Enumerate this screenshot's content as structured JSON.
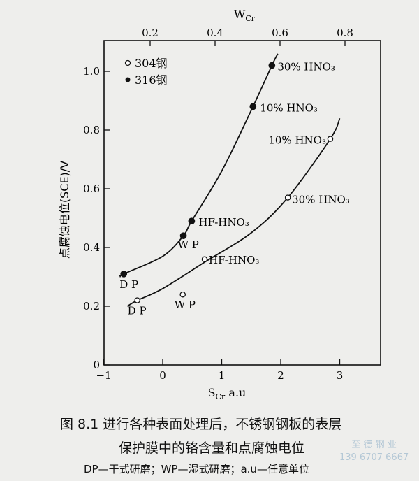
{
  "chart_data": {
    "type": "scatter",
    "xlabel": "S",
    "xlabel_sub": "Cr",
    "xlabel_unit": " a.u",
    "x2label": "W",
    "x2label_sub": "Cr",
    "ylabel": "点腐蚀电位(SCE)/V",
    "xlim": [
      -1,
      3.5
    ],
    "ylim": [
      0,
      1.1
    ],
    "xticks": [
      -1,
      0,
      1,
      2,
      3
    ],
    "yticks": [
      0,
      0.2,
      0.4,
      0.6,
      0.8,
      1.0
    ],
    "ytick_labels": [
      "0",
      "0.2",
      "0.4",
      "0.6",
      "0.8",
      "1.0"
    ],
    "x2ticks": [
      0.2,
      0.4,
      0.6,
      0.8
    ],
    "x2tick_labels": [
      "0.2",
      "0.4",
      "0.6",
      "0.8"
    ],
    "grid": false,
    "legend_placement": "top-left",
    "series": [
      {
        "name": "304钢",
        "marker": "open-circle",
        "points": [
          {
            "x": -0.43,
            "y": 0.22,
            "label": "D P"
          },
          {
            "x": 0.34,
            "y": 0.24,
            "label": "W P"
          },
          {
            "x": 0.71,
            "y": 0.36,
            "label": "HF-HNO₃"
          },
          {
            "x": 2.12,
            "y": 0.57,
            "label": "30% HNO₃"
          },
          {
            "x": 2.84,
            "y": 0.77,
            "label": "10% HNO₃"
          }
        ],
        "curve": [
          [
            -0.6,
            0.2
          ],
          [
            -0.43,
            0.22
          ],
          [
            0.0,
            0.26
          ],
          [
            0.71,
            0.35
          ],
          [
            1.5,
            0.45
          ],
          [
            2.12,
            0.57
          ],
          [
            2.84,
            0.77
          ],
          [
            3.0,
            0.84
          ]
        ]
      },
      {
        "name": "316钢",
        "marker": "filled-circle",
        "points": [
          {
            "x": -0.66,
            "y": 0.31,
            "label": "D P"
          },
          {
            "x": 0.35,
            "y": 0.44,
            "label": "W P"
          },
          {
            "x": 0.49,
            "y": 0.49,
            "label": "HF-HNO₃"
          },
          {
            "x": 1.53,
            "y": 0.88,
            "label": "10% HNO₃"
          },
          {
            "x": 1.85,
            "y": 1.02,
            "label": "30% HNO₃"
          }
        ],
        "curve": [
          [
            -0.72,
            0.3
          ],
          [
            -0.66,
            0.31
          ],
          [
            0.0,
            0.37
          ],
          [
            0.35,
            0.44
          ],
          [
            0.49,
            0.49
          ],
          [
            1.0,
            0.66
          ],
          [
            1.53,
            0.88
          ],
          [
            1.85,
            1.02
          ],
          [
            1.95,
            1.06
          ]
        ]
      }
    ]
  },
  "caption": {
    "line1": "图 8.1   进行各种表面处理后，不锈钢钢板的表层",
    "line2": "保护膜中的铬含量和点腐蚀电位",
    "note": "DP—干式研磨；WP—湿式研磨；a.u—任意单位"
  },
  "watermark": {
    "line1": "至 德 钢 业",
    "line2": "139 6707 6667"
  }
}
